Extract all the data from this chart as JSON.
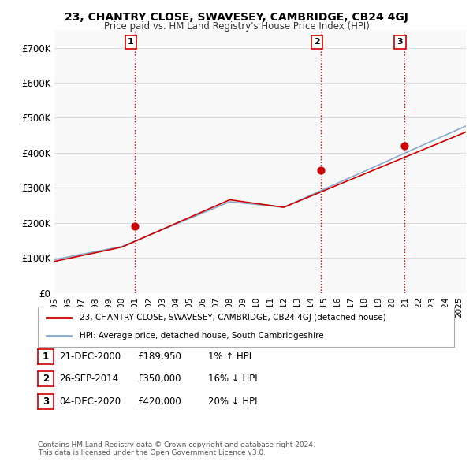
{
  "title": "23, CHANTRY CLOSE, SWAVESEY, CAMBRIDGE, CB24 4GJ",
  "subtitle": "Price paid vs. HM Land Registry's House Price Index (HPI)",
  "ylabel": "",
  "background_color": "#ffffff",
  "plot_bg_color": "#f9f9f9",
  "grid_color": "#dddddd",
  "sale_color": "#cc0000",
  "hpi_color": "#aaccee",
  "hpi_line_color": "#88aacc",
  "marker_color": "#cc0000",
  "sale_dates_num": [
    2000.97,
    2014.74,
    2020.92
  ],
  "sale_prices": [
    189950,
    350000,
    420000
  ],
  "sale_labels": [
    "1",
    "2",
    "3"
  ],
  "vline_color": "#cc0000",
  "vline_style": "dotted",
  "legend_entries": [
    "23, CHANTRY CLOSE, SWAVESEY, CAMBRIDGE, CB24 4GJ (detached house)",
    "HPI: Average price, detached house, South Cambridgeshire"
  ],
  "table_data": [
    [
      "1",
      "21-DEC-2000",
      "£189,950",
      "1% ↑ HPI"
    ],
    [
      "2",
      "26-SEP-2014",
      "£350,000",
      "16% ↓ HPI"
    ],
    [
      "3",
      "04-DEC-2020",
      "£420,000",
      "20% ↓ HPI"
    ]
  ],
  "footnote": "Contains HM Land Registry data © Crown copyright and database right 2024.\nThis data is licensed under the Open Government Licence v3.0.",
  "ylim": [
    0,
    750000
  ],
  "xlim_start": 1995.0,
  "xlim_end": 2025.5,
  "yticks": [
    0,
    100000,
    200000,
    300000,
    400000,
    500000,
    600000,
    700000
  ],
  "ytick_labels": [
    "£0",
    "£100K",
    "£200K",
    "£300K",
    "£400K",
    "£500K",
    "£600K",
    "£700K"
  ]
}
